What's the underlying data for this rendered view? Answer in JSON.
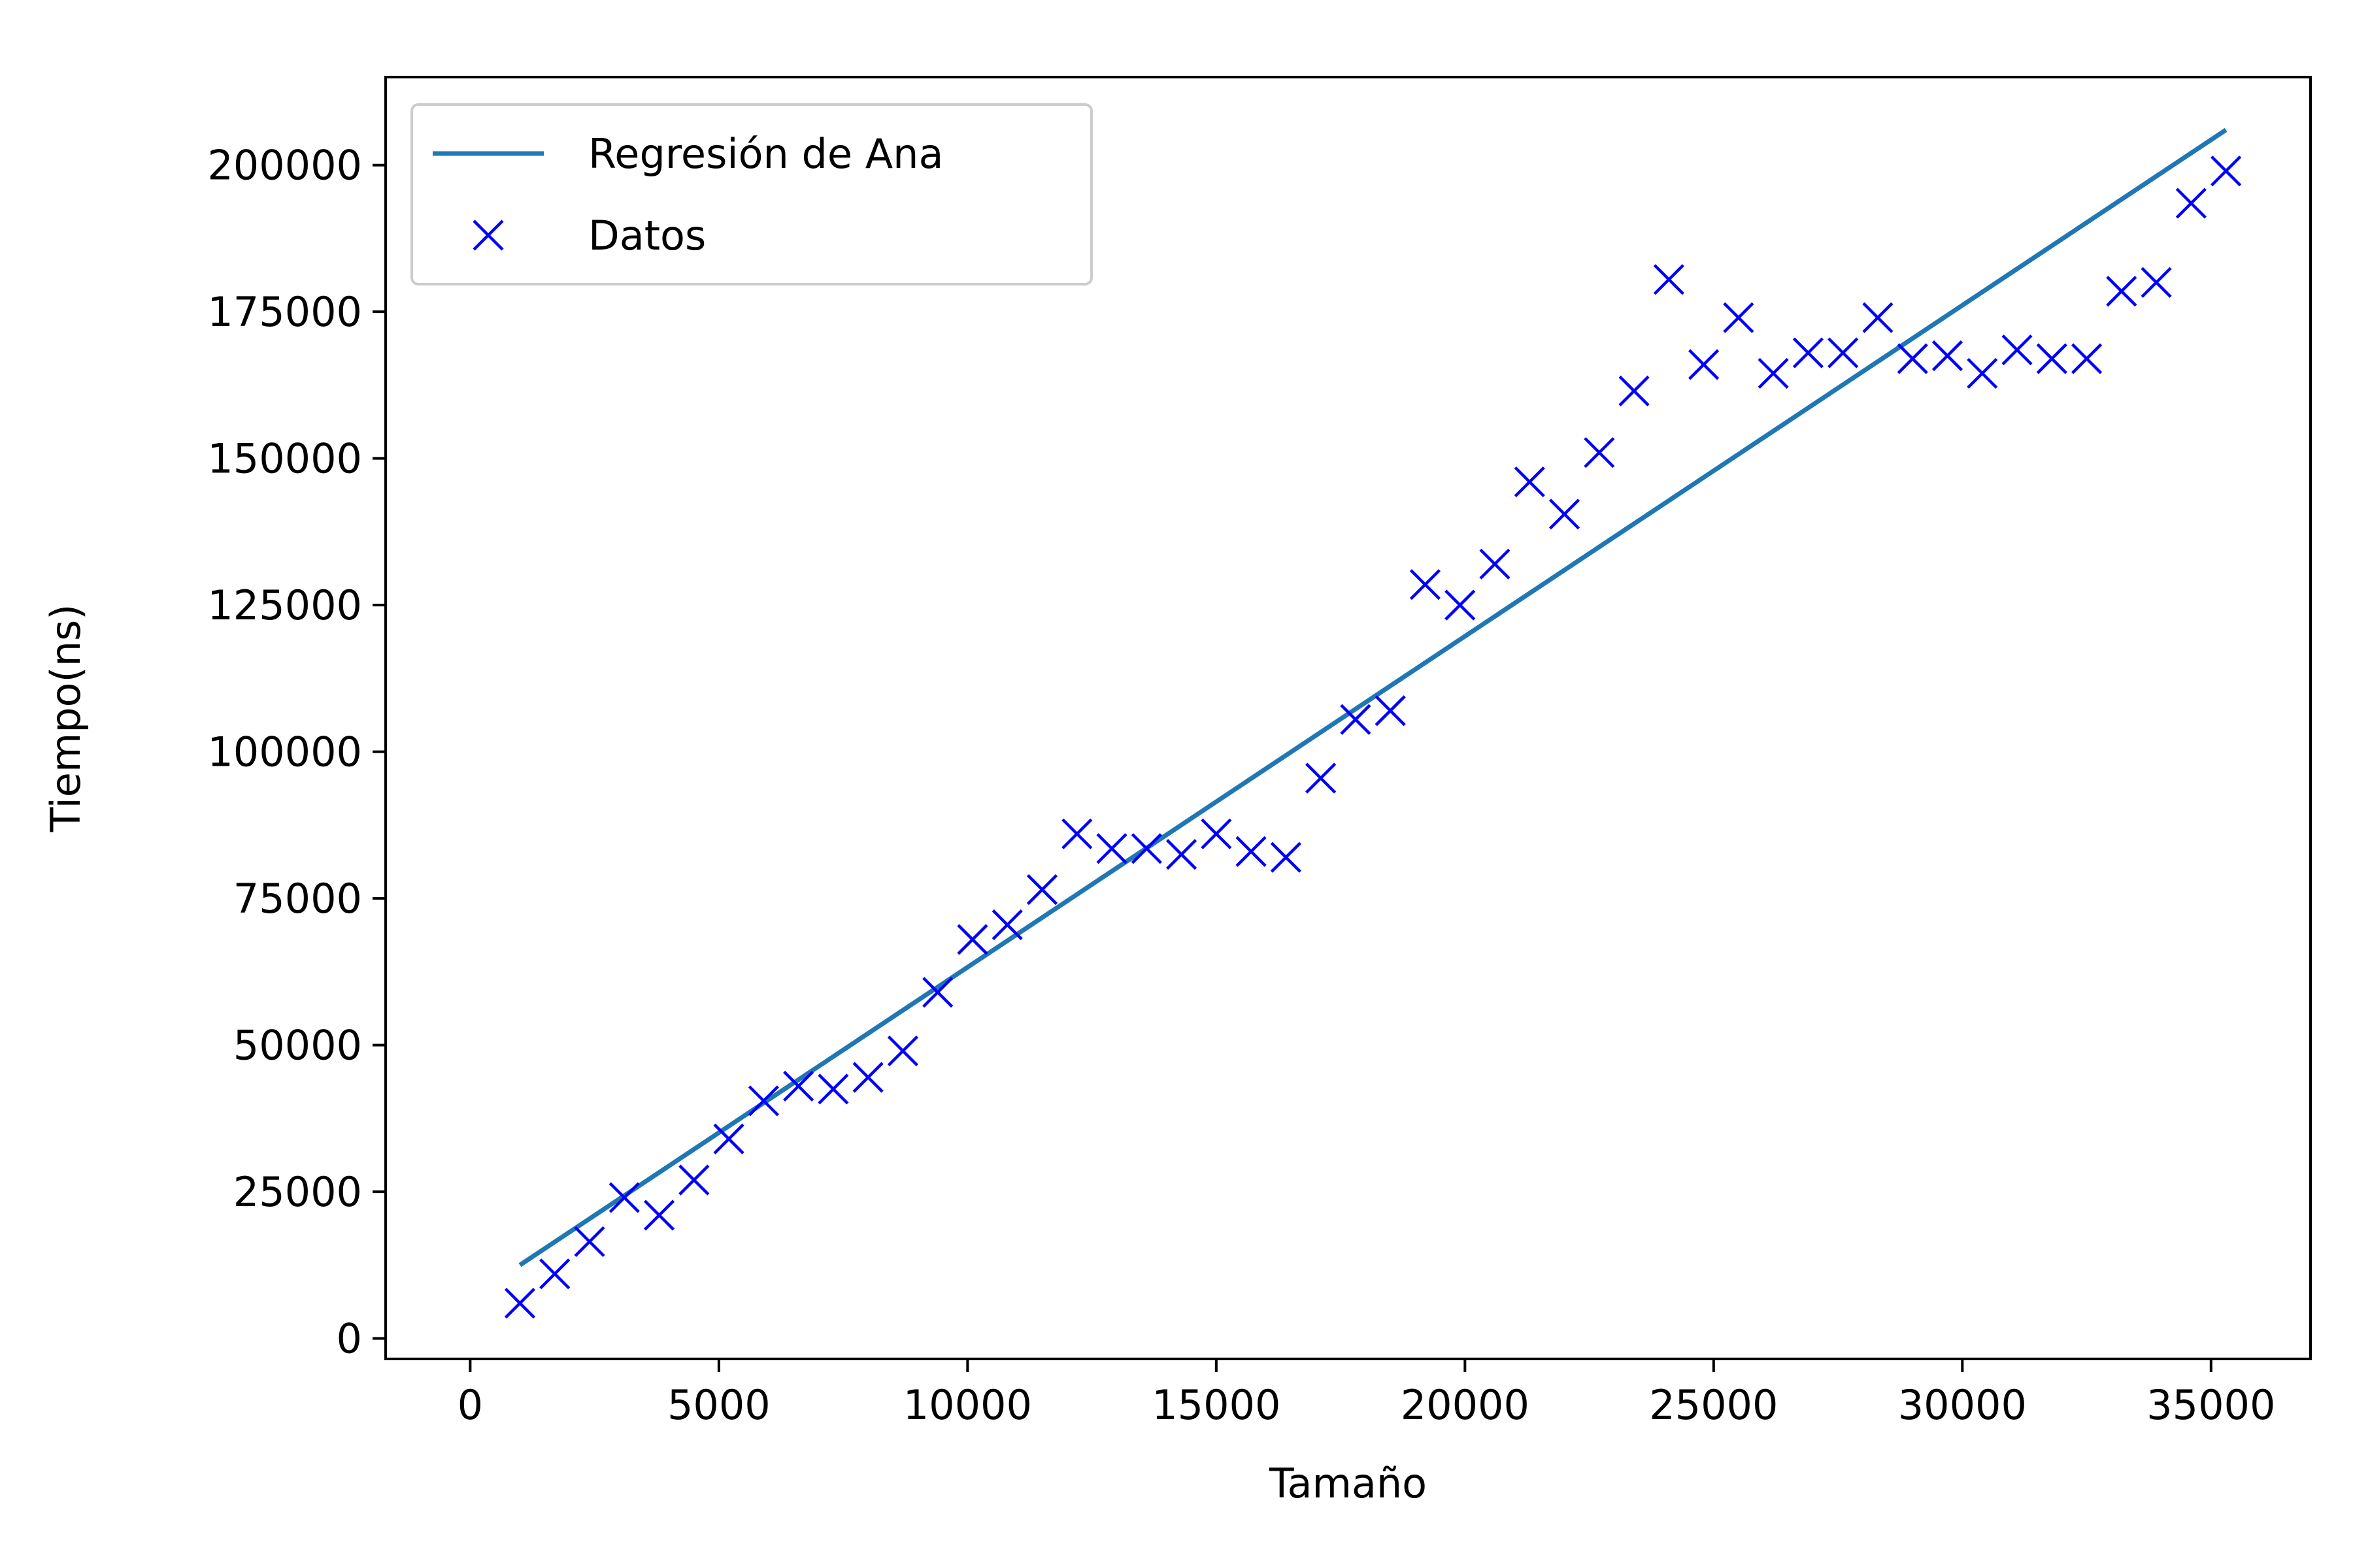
{
  "chart_data": {
    "type": "scatter",
    "title": "",
    "xlabel": "Tamaño",
    "ylabel": "Tiempo(ns)",
    "xlim": [
      -1700,
      37000
    ],
    "ylim": [
      -3500,
      215000
    ],
    "xticks": [
      0,
      5000,
      10000,
      15000,
      20000,
      25000,
      30000,
      35000
    ],
    "yticks": [
      0,
      25000,
      50000,
      75000,
      100000,
      125000,
      150000,
      175000,
      200000
    ],
    "grid": false,
    "legend_position": "top-left",
    "series": [
      {
        "name": "Regresión de Ana",
        "kind": "line",
        "color": "#1f77b4",
        "x": [
          1000,
          35300
        ],
        "y": [
          12500,
          206000
        ]
      },
      {
        "name": "Datos",
        "kind": "scatter",
        "marker": "x",
        "color": "#0000ff",
        "x": [
          1000,
          1700,
          2400,
          3100,
          3800,
          4500,
          5200,
          5900,
          6600,
          7300,
          8000,
          8700,
          9400,
          10100,
          10800,
          11500,
          12200,
          12900,
          13600,
          14300,
          15000,
          15700,
          16400,
          17100,
          17800,
          18500,
          19200,
          19900,
          20600,
          21300,
          22000,
          22700,
          23400,
          24100,
          24800,
          25500,
          26200,
          26900,
          27600,
          28300,
          29000,
          29700,
          30400,
          31100,
          31800,
          32500,
          33200,
          33900,
          34600,
          35300
        ],
        "y": [
          6000,
          11000,
          16500,
          24000,
          21000,
          27000,
          34000,
          40500,
          43000,
          42500,
          44500,
          49000,
          59000,
          68000,
          70500,
          76500,
          86000,
          83500,
          83500,
          82500,
          86000,
          83000,
          82000,
          95500,
          105500,
          107000,
          128500,
          125000,
          132000,
          146000,
          140500,
          151000,
          161500,
          180500,
          166000,
          174000,
          164500,
          168000,
          168000,
          174000,
          167000,
          167500,
          164500,
          168500,
          167000,
          167000,
          178500,
          180000,
          193500,
          199000
        ]
      }
    ]
  }
}
